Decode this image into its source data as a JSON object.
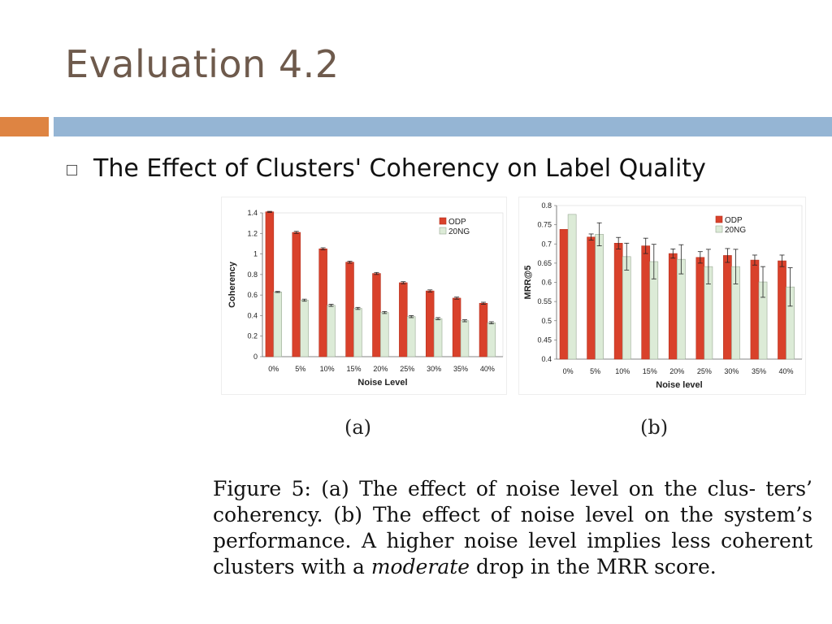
{
  "slide": {
    "title": "Evaluation 4.2",
    "bullet": "The Effect of Clusters' Coherency on Label Quality"
  },
  "colors": {
    "title": "#6e5a4c",
    "accent_orange": "#de8442",
    "accent_blue": "#95b5d4",
    "odp": "#d9412b",
    "ng20": "#dcebd7"
  },
  "panels": {
    "a": "(a)",
    "b": "(b)"
  },
  "caption": {
    "part1": "Figure 5: (a) The effect of noise level on the clus- ters’ coherency. (b) The effect of noise level on the system’s performance. A higher noise level implies less coherent clusters with a ",
    "emphasis": "moderate",
    "part2": " drop in the MRR score."
  },
  "chart_data": [
    {
      "type": "bar",
      "categories": [
        "0%",
        "5%",
        "10%",
        "15%",
        "20%",
        "25%",
        "30%",
        "35%",
        "40%"
      ],
      "xlabel": "Noise Level",
      "ylabel": "Coherency",
      "ylim": [
        0,
        1.4
      ],
      "yticks": [
        "0",
        "0.2",
        "0.4",
        "0.6",
        "0.8",
        "1",
        "1.2",
        "1.4"
      ],
      "legend": "top-right",
      "series": [
        {
          "name": "ODP",
          "color": "#d9412b",
          "values": [
            1.41,
            1.21,
            1.05,
            0.92,
            0.81,
            0.72,
            0.64,
            0.57,
            0.52
          ],
          "errors": [
            0.005,
            0.01,
            0.01,
            0.01,
            0.01,
            0.01,
            0.01,
            0.01,
            0.01
          ]
        },
        {
          "name": "20NG",
          "color": "#dcebd7",
          "values": [
            0.63,
            0.55,
            0.5,
            0.47,
            0.43,
            0.39,
            0.37,
            0.35,
            0.33
          ],
          "errors": [
            0.005,
            0.01,
            0.01,
            0.01,
            0.01,
            0.01,
            0.01,
            0.01,
            0.01
          ]
        }
      ]
    },
    {
      "type": "bar",
      "categories": [
        "0%",
        "5%",
        "10%",
        "15%",
        "20%",
        "25%",
        "30%",
        "35%",
        "40%"
      ],
      "xlabel": "Noise level",
      "ylabel": "MRR@5",
      "ylim": [
        0.4,
        0.8
      ],
      "yticks": [
        "0.4",
        "0.45",
        "0.5",
        "0.55",
        "0.6",
        "0.65",
        "0.7",
        "0.75",
        "0.8"
      ],
      "legend": "top-right",
      "series": [
        {
          "name": "ODP",
          "color": "#d9412b",
          "values": [
            0.738,
            0.718,
            0.702,
            0.695,
            0.675,
            0.665,
            0.67,
            0.658,
            0.656
          ],
          "errors": [
            0.0,
            0.008,
            0.015,
            0.02,
            0.012,
            0.015,
            0.018,
            0.013,
            0.015
          ]
        },
        {
          "name": "20NG",
          "color": "#dcebd7",
          "values": [
            0.777,
            0.725,
            0.667,
            0.654,
            0.66,
            0.641,
            0.641,
            0.601,
            0.588
          ],
          "errors": [
            0.0,
            0.03,
            0.035,
            0.045,
            0.038,
            0.045,
            0.045,
            0.04,
            0.05
          ]
        }
      ]
    }
  ]
}
